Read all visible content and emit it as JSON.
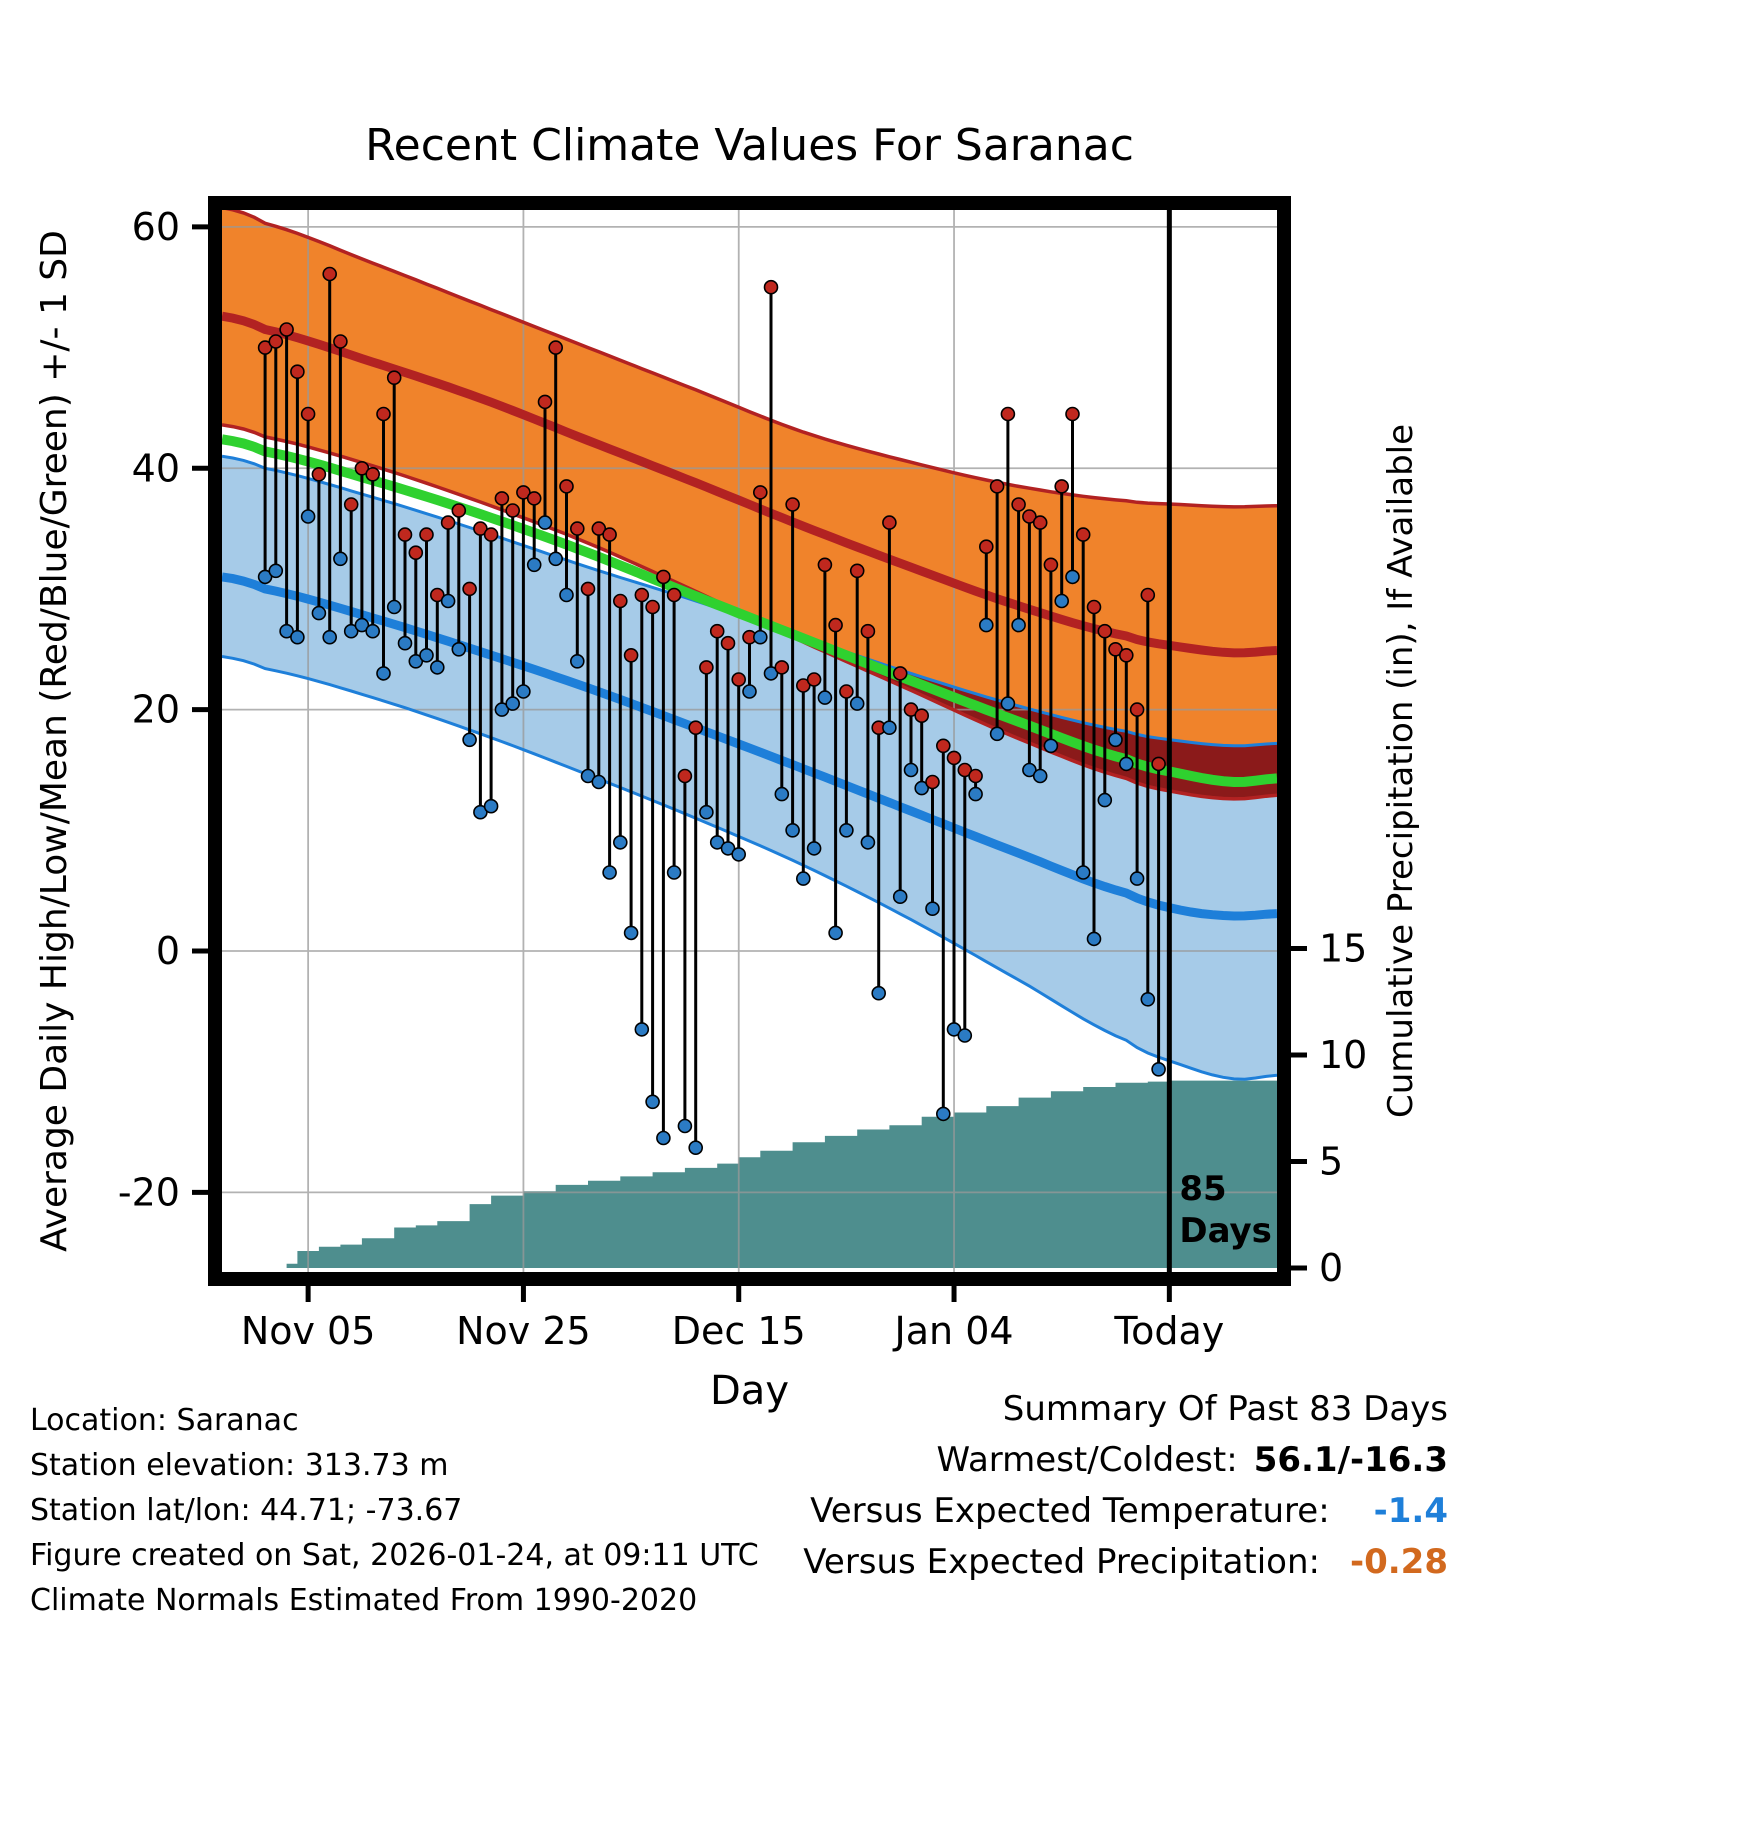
{
  "title": "Recent Climate Values For Saranac",
  "colors": {
    "high_band": "#F0832B",
    "high_line": "#B22222",
    "overlap_band": "#8B1A1A",
    "low_band": "#A6CBE8",
    "low_line": "#1E7FD9",
    "mean_line": "#2FD12F",
    "precip_fill": "#4E8E8E",
    "high_dot": "#C0281E",
    "low_dot": "#2B7BC4",
    "grid": "#999999",
    "vs_temp_value": "#1E7FD9",
    "vs_precip_value": "#D2691E"
  },
  "chart_data": {
    "type": "scatter",
    "title": "Recent Climate Values For Saranac",
    "xlabel": "Day",
    "ylabel_left": "Average Daily High/Low/Mean (Red/Blue/Green) +/- 1 SD",
    "ylabel_right": "Cumulative Precipitation (in), If Available",
    "xlim_days": [
      -4,
      94
    ],
    "ylim_left": [
      -26.6,
      61.4
    ],
    "x_ticks": [
      {
        "day": 4,
        "label": "Nov 05"
      },
      {
        "day": 24,
        "label": "Nov 25"
      },
      {
        "day": 44,
        "label": "Dec 15"
      },
      {
        "day": 64,
        "label": "Jan 04"
      },
      {
        "day": 84,
        "label": "Today"
      }
    ],
    "y_left_ticks": [
      60,
      40,
      20,
      0,
      -20
    ],
    "y_right_ticks": [
      15,
      10,
      5,
      0
    ],
    "marker_day": 84,
    "marker_label": [
      "85",
      "Days"
    ],
    "daily_high": [
      50,
      50.5,
      51.5,
      48,
      44.5,
      39.5,
      56.1,
      50.5,
      37,
      40,
      39.5,
      44.5,
      47.5,
      34.5,
      33,
      34.5,
      29.5,
      35.5,
      36.5,
      30,
      35,
      34.5,
      37.5,
      36.5,
      38,
      37.5,
      45.5,
      50,
      38.5,
      35,
      30,
      35,
      34.5,
      29,
      24.5,
      29.5,
      28.5,
      31,
      29.5,
      14.5,
      18.5,
      23.5,
      26.5,
      25.5,
      22.5,
      26,
      38,
      55,
      23.5,
      37,
      22,
      22.5,
      32,
      27,
      21.5,
      31.5,
      26.5,
      18.5,
      35.5,
      23,
      20,
      19.5,
      14,
      17,
      16,
      15,
      14.5,
      33.5,
      38.5,
      44.5,
      37,
      36,
      35.5,
      32,
      38.5,
      44.5,
      34.5,
      28.5,
      26.5,
      25,
      24.5,
      20,
      29.5,
      15.5
    ],
    "daily_low": [
      31,
      31.5,
      26.5,
      26,
      36,
      28,
      26,
      32.5,
      26.5,
      27,
      26.5,
      23,
      28.5,
      25.5,
      24,
      24.5,
      23.5,
      29,
      25,
      17.5,
      11.5,
      12,
      20,
      20.5,
      21.5,
      32,
      35.5,
      32.5,
      29.5,
      24,
      14.5,
      14,
      6.5,
      9,
      1.5,
      -6.5,
      -12.5,
      -15.5,
      6.5,
      -14.5,
      -16.3,
      11.5,
      9,
      8.5,
      8,
      21.5,
      26,
      23,
      13,
      10,
      6,
      8.5,
      21,
      1.5,
      10,
      20.5,
      9,
      -3.5,
      18.5,
      4.5,
      15,
      13.5,
      3.5,
      -13.5,
      -6.5,
      -7,
      13,
      27,
      18,
      20.5,
      27,
      15,
      14.5,
      17,
      29,
      31,
      6.5,
      1,
      12.5,
      17.5,
      15.5,
      6,
      -4,
      -9.8
    ],
    "normals_days": [
      -4,
      0,
      10,
      20,
      30,
      40,
      50,
      60,
      70,
      80,
      85,
      90,
      94
    ],
    "normals": {
      "high_upper": [
        61.6,
        60.3,
        57.0,
        53.5,
        50.0,
        46.5,
        43.0,
        40.5,
        38.5,
        37.3,
        37.0,
        36.8,
        36.9
      ],
      "high_mean": [
        52.6,
        51.5,
        48.8,
        45.8,
        42.3,
        38.8,
        35.2,
        31.8,
        28.6,
        26.1,
        25.2,
        24.7,
        24.9
      ],
      "high_lower": [
        43.6,
        42.6,
        40.2,
        37.2,
        33.8,
        29.8,
        25.6,
        21.6,
        17.6,
        14.3,
        13.1,
        12.6,
        12.9
      ],
      "mean": [
        42.4,
        41.4,
        39.0,
        36.2,
        33.0,
        29.4,
        25.9,
        22.4,
        19.0,
        15.9,
        14.7,
        14.0,
        14.3
      ],
      "low_upper": [
        41.0,
        40.0,
        37.6,
        34.8,
        31.8,
        29.0,
        26.0,
        23.0,
        20.3,
        18.2,
        17.4,
        17.0,
        17.2
      ],
      "low_mean": [
        31.0,
        30.0,
        27.6,
        24.8,
        21.8,
        18.5,
        15.1,
        11.6,
        8.1,
        4.8,
        3.4,
        2.9,
        3.1
      ],
      "low_lower": [
        24.4,
        23.4,
        21.0,
        18.0,
        14.6,
        11.0,
        7.1,
        2.6,
        -2.4,
        -7.4,
        -9.4,
        -10.6,
        -10.3
      ]
    },
    "precip_cumulative": [
      [
        0,
        0
      ],
      [
        2,
        0.2
      ],
      [
        3,
        0.8
      ],
      [
        5,
        1.0
      ],
      [
        7,
        1.1
      ],
      [
        9,
        1.4
      ],
      [
        12,
        1.9
      ],
      [
        14,
        2.0
      ],
      [
        16,
        2.2
      ],
      [
        19,
        3.0
      ],
      [
        21,
        3.4
      ],
      [
        24,
        3.6
      ],
      [
        27,
        3.9
      ],
      [
        30,
        4.1
      ],
      [
        33,
        4.3
      ],
      [
        36,
        4.5
      ],
      [
        39,
        4.7
      ],
      [
        42,
        4.9
      ],
      [
        44,
        5.2
      ],
      [
        46,
        5.5
      ],
      [
        49,
        5.9
      ],
      [
        52,
        6.2
      ],
      [
        55,
        6.5
      ],
      [
        58,
        6.7
      ],
      [
        61,
        7.1
      ],
      [
        64,
        7.3
      ],
      [
        67,
        7.6
      ],
      [
        70,
        8.0
      ],
      [
        73,
        8.3
      ],
      [
        76,
        8.5
      ],
      [
        79,
        8.7
      ],
      [
        82,
        8.75
      ],
      [
        84,
        8.8
      ],
      [
        94,
        8.85
      ]
    ]
  },
  "summary": {
    "title": "Summary Of Past 83 Days",
    "warmest_coldest_label": "Warmest/Coldest:",
    "warmest_coldest_value": "56.1/-16.3",
    "vs_temp_label": "Versus Expected Temperature:",
    "vs_temp_value": "-1.4",
    "vs_precip_label": "Versus Expected Precipitation:",
    "vs_precip_value": "-0.28"
  },
  "footer": {
    "lines": [
      "Location: Saranac",
      "Station elevation: 313.73 m",
      "Station lat/lon: 44.71; -73.67",
      "Figure created on Sat, 2026-01-24, at 09:11 UTC",
      "Climate Normals Estimated From 1990-2020"
    ]
  }
}
